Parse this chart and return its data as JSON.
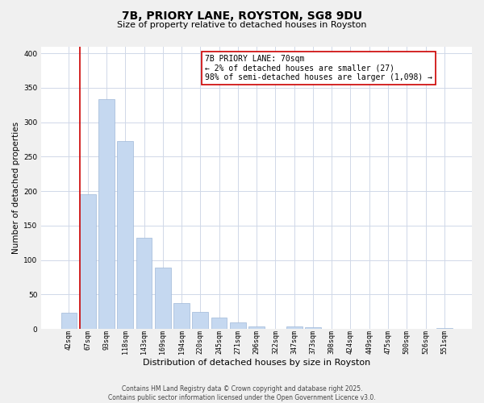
{
  "title_line1": "7B, PRIORY LANE, ROYSTON, SG8 9DU",
  "title_line2": "Size of property relative to detached houses in Royston",
  "xlabel": "Distribution of detached houses by size in Royston",
  "ylabel": "Number of detached properties",
  "categories": [
    "42sqm",
    "67sqm",
    "93sqm",
    "118sqm",
    "143sqm",
    "169sqm",
    "194sqm",
    "220sqm",
    "245sqm",
    "271sqm",
    "296sqm",
    "322sqm",
    "347sqm",
    "373sqm",
    "398sqm",
    "424sqm",
    "449sqm",
    "475sqm",
    "500sqm",
    "526sqm",
    "551sqm"
  ],
  "values": [
    23,
    195,
    333,
    272,
    132,
    89,
    38,
    25,
    17,
    9,
    3,
    0,
    3,
    2,
    0,
    0,
    0,
    0,
    0,
    0,
    1
  ],
  "bar_color": "#c5d8f0",
  "bar_edge_color": "#a0b8d8",
  "marker_line_color": "#cc0000",
  "annotation_line1": "7B PRIORY LANE: 70sqm",
  "annotation_line2": "← 2% of detached houses are smaller (27)",
  "annotation_line3": "98% of semi-detached houses are larger (1,098) →",
  "annotation_box_color": "#ffffff",
  "annotation_box_edge": "#cc0000",
  "ylim": [
    0,
    410
  ],
  "yticks": [
    0,
    50,
    100,
    150,
    200,
    250,
    300,
    350,
    400
  ],
  "footer_line1": "Contains HM Land Registry data © Crown copyright and database right 2025.",
  "footer_line2": "Contains public sector information licensed under the Open Government Licence v3.0.",
  "bg_color": "#f0f0f0",
  "plot_bg_color": "#ffffff",
  "grid_color": "#d0d8e8",
  "title_fontsize": 10,
  "subtitle_fontsize": 8,
  "ylabel_fontsize": 7.5,
  "xlabel_fontsize": 8,
  "tick_fontsize": 6,
  "annot_fontsize": 7,
  "footer_fontsize": 5.5
}
